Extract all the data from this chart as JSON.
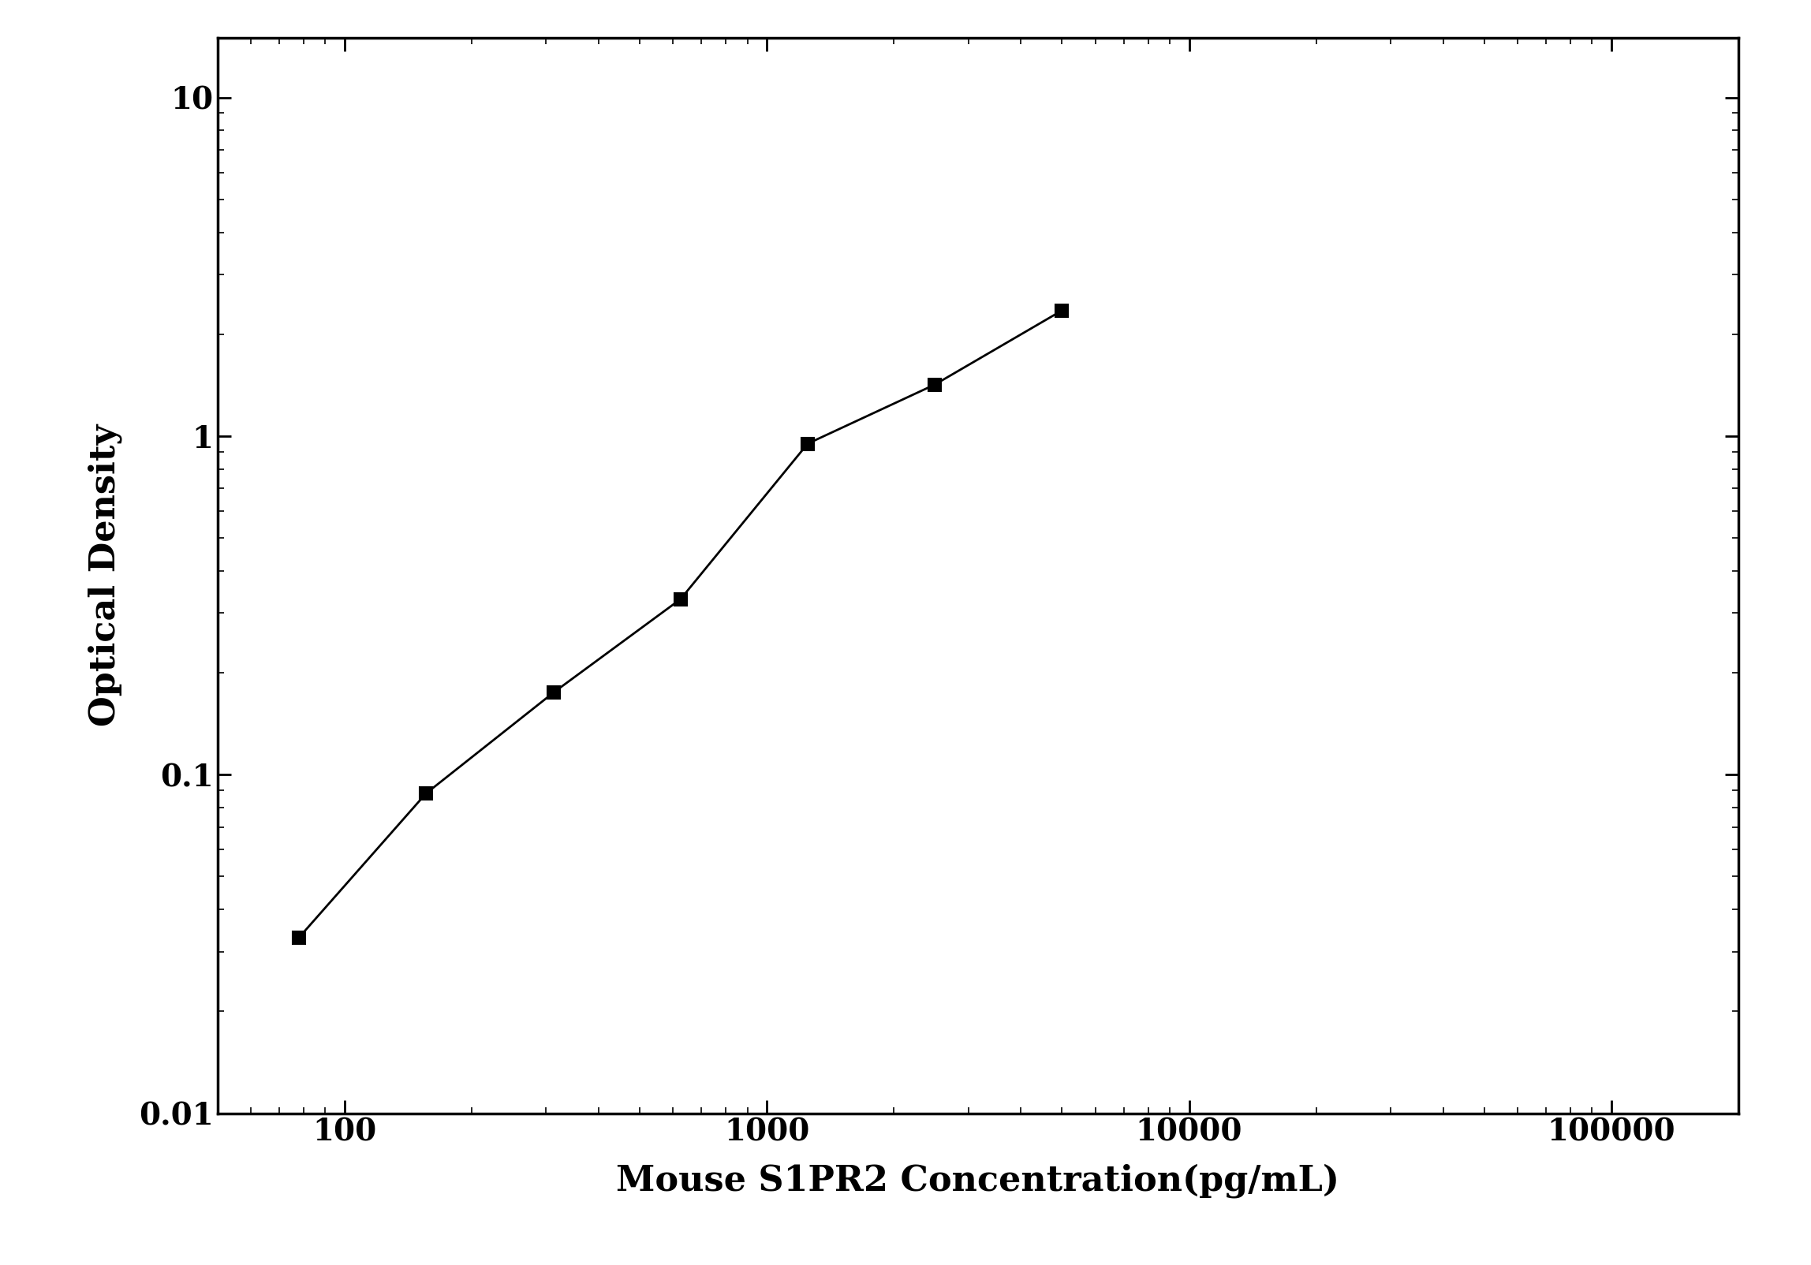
{
  "x": [
    78,
    156,
    313,
    625,
    1250,
    2500,
    5000
  ],
  "y": [
    0.033,
    0.088,
    0.175,
    0.33,
    0.95,
    1.42,
    2.35
  ],
  "xlabel": "Mouse S1PR2 Concentration(pg/mL)",
  "ylabel": "Optical Density",
  "xlim": [
    50,
    200000
  ],
  "ylim": [
    0.01,
    15
  ],
  "xticks": [
    100,
    1000,
    10000,
    100000
  ],
  "yticks": [
    0.01,
    0.1,
    1,
    10
  ],
  "background_color": "#ffffff",
  "line_color": "#000000",
  "marker_color": "#000000",
  "marker": "s",
  "marker_size": 12,
  "line_width": 2.0,
  "xlabel_fontsize": 32,
  "ylabel_fontsize": 32,
  "tick_fontsize": 28,
  "tick_label_color": "#000000",
  "x_tick_labels": [
    "100",
    "1000",
    "10000",
    "100000"
  ],
  "y_tick_labels": [
    "0.01",
    "0.1",
    "1",
    "10"
  ]
}
